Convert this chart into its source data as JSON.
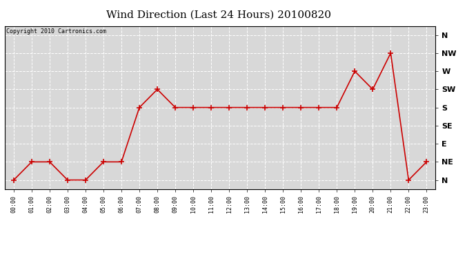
{
  "title": "Wind Direction (Last 24 Hours) 20100820",
  "copyright_text": "Copyright 2010 Cartronics.com",
  "x_labels": [
    "00:00",
    "01:00",
    "02:00",
    "03:00",
    "04:00",
    "05:00",
    "06:00",
    "07:00",
    "08:00",
    "09:00",
    "10:00",
    "11:00",
    "12:00",
    "13:00",
    "14:00",
    "15:00",
    "16:00",
    "17:00",
    "18:00",
    "19:00",
    "20:00",
    "21:00",
    "22:00",
    "23:00"
  ],
  "y_labels": [
    "N",
    "NE",
    "E",
    "SE",
    "S",
    "SW",
    "W",
    "NW",
    "N"
  ],
  "y_values": [
    0,
    1,
    2,
    3,
    4,
    5,
    6,
    7,
    8
  ],
  "wind_data": [
    0,
    1,
    1,
    0,
    0,
    1,
    1,
    4,
    5,
    4,
    4,
    4,
    4,
    4,
    4,
    4,
    4,
    4,
    4,
    6,
    5,
    7,
    0,
    1
  ],
  "line_color": "#cc0000",
  "marker": "+",
  "marker_size": 6,
  "marker_linewidth": 1.2,
  "line_width": 1.2,
  "bg_color": "#ffffff",
  "plot_bg_color": "#d8d8d8",
  "grid_color": "#ffffff",
  "title_fontsize": 11,
  "copyright_fontsize": 6,
  "tick_fontsize": 6,
  "ytick_fontsize": 8
}
